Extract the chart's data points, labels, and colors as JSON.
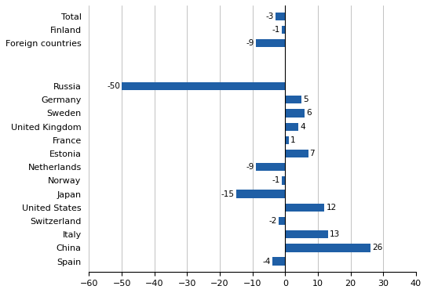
{
  "categories": [
    "Total",
    "Finland",
    "Foreign countries",
    "",
    "Russia",
    "Germany",
    "Sweden",
    "United Kingdom",
    "France",
    "Estonia",
    "Netherlands",
    "Norway",
    "Japan",
    "United States",
    "Switzerland",
    "Italy",
    "China",
    "Spain"
  ],
  "values": [
    -3,
    -1,
    -9,
    null,
    -50,
    5,
    6,
    4,
    1,
    7,
    -9,
    -1,
    -15,
    12,
    -2,
    13,
    26,
    -4
  ],
  "bar_color": "#1f5fa6",
  "xlim": [
    -60,
    40
  ],
  "xticks": [
    -60,
    -50,
    -40,
    -30,
    -20,
    -10,
    0,
    10,
    20,
    30,
    40
  ],
  "figsize": [
    5.44,
    3.74
  ],
  "dpi": 100
}
